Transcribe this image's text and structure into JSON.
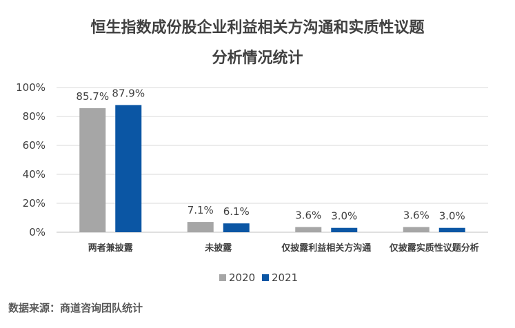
{
  "title_line1": "恒生指数成份股企业利益相关方沟通和实质性议题",
  "title_line2": "分析情况统计",
  "source": "数据来源：商道咨询团队统计",
  "colors": {
    "s2020": "#a6a6a6",
    "s2021": "#0b56a4",
    "grid": "#d9d9d9",
    "axis": "#bfbfbf"
  },
  "chart_data": {
    "type": "bar",
    "categories": [
      "两者兼披露",
      "未披露",
      "仅披露利益相关方沟通",
      "仅披露实质性议题分析"
    ],
    "series": [
      {
        "name": "2020",
        "values": [
          85.7,
          7.1,
          3.6,
          3.6
        ],
        "labels": [
          "85.7%",
          "7.1%",
          "3.6%",
          "3.6%"
        ]
      },
      {
        "name": "2021",
        "values": [
          87.9,
          6.1,
          3.0,
          3.0
        ],
        "labels": [
          "87.9%",
          "6.1%",
          "3.0%",
          "3.0%"
        ]
      }
    ],
    "yticks": [
      "0%",
      "20%",
      "40%",
      "60%",
      "80%",
      "100%"
    ],
    "ylim": [
      0,
      100
    ],
    "grid": true,
    "legend": "bottom-center"
  }
}
